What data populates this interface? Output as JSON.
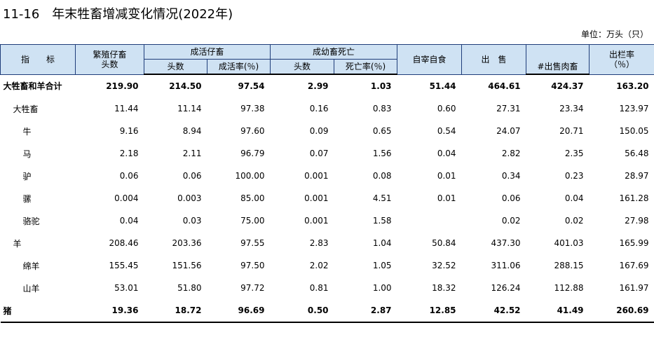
{
  "header": {
    "title": "11-16　年末牲畜增减变化情况(2022年)",
    "unit": "单位：万头（只）"
  },
  "table": {
    "head": {
      "indicator": "指　　标",
      "born": [
        "繁殖仔畜",
        "头数"
      ],
      "survived": "成活仔畜",
      "survived_count": "头数",
      "survival_rate": "成活率(％)",
      "dead": "成幼畜死亡",
      "dead_count": "头数",
      "death_rate": "死亡率(％)",
      "slaughter": "自宰自食",
      "sold": "出　售",
      "sold_meat": "#出售肉畜",
      "offtake": [
        "出栏率",
        "（％）"
      ]
    },
    "rows": [
      [
        "大牲畜和羊合计",
        "219.90",
        "214.50",
        "97.54",
        "2.99",
        "1.03",
        "51.44",
        "464.61",
        "424.37",
        "163.20"
      ],
      [
        "大牲畜",
        "11.44",
        "11.14",
        "97.38",
        "0.16",
        "0.83",
        "0.60",
        "27.31",
        "23.34",
        "123.97"
      ],
      [
        "牛",
        "9.16",
        "8.94",
        "97.60",
        "0.09",
        "0.65",
        "0.54",
        "24.07",
        "20.71",
        "150.05"
      ],
      [
        "马",
        "2.18",
        "2.11",
        "96.79",
        "0.07",
        "1.56",
        "0.04",
        "2.82",
        "2.35",
        "56.48"
      ],
      [
        "驴",
        "0.06",
        "0.06",
        "100.00",
        "0.001",
        "0.08",
        "0.01",
        "0.34",
        "0.23",
        "28.97"
      ],
      [
        "骡",
        "0.004",
        "0.003",
        "85.00",
        "0.001",
        "4.51",
        "0.01",
        "0.06",
        "0.04",
        "161.28"
      ],
      [
        "骆驼",
        "0.04",
        "0.03",
        "75.00",
        "0.001",
        "1.58",
        null,
        "0.02",
        "0.02",
        "27.98"
      ],
      [
        "羊",
        "208.46",
        "203.36",
        "97.55",
        "2.83",
        "1.04",
        "50.84",
        "437.30",
        "401.03",
        "165.99"
      ],
      [
        "绵羊",
        "155.45",
        "151.56",
        "97.50",
        "2.02",
        "1.05",
        "32.52",
        "311.06",
        "288.15",
        "167.69"
      ],
      [
        "山羊",
        "53.01",
        "51.80",
        "97.72",
        "0.81",
        "1.00",
        "18.32",
        "126.24",
        "112.88",
        "161.97"
      ],
      [
        "猪",
        "19.36",
        "18.72",
        "96.69",
        "0.50",
        "2.87",
        "12.85",
        "42.52",
        "41.49",
        "260.69"
      ]
    ]
  }
}
